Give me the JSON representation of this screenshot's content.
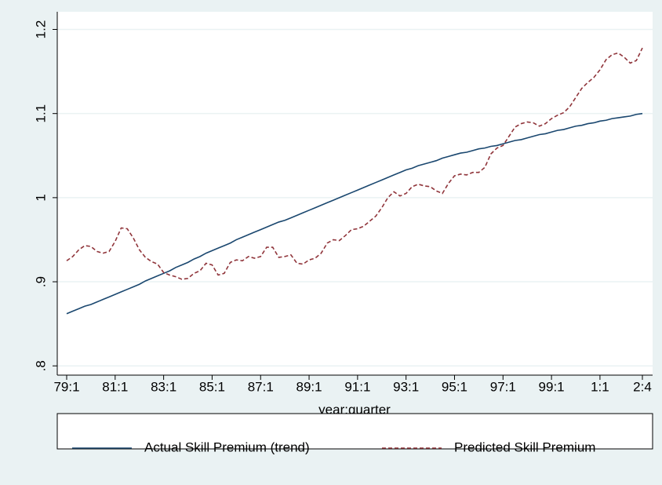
{
  "chart_data": {
    "type": "line",
    "x_label": "year:quarter",
    "categories": [
      "79:1",
      null,
      null,
      null,
      null,
      null,
      null,
      null,
      "81:1",
      null,
      null,
      null,
      null,
      null,
      null,
      null,
      "83:1",
      null,
      null,
      null,
      null,
      null,
      null,
      null,
      "85:1",
      null,
      null,
      null,
      null,
      null,
      null,
      null,
      "87:1",
      null,
      null,
      null,
      null,
      null,
      null,
      null,
      "89:1",
      null,
      null,
      null,
      null,
      null,
      null,
      null,
      "91:1",
      null,
      null,
      null,
      null,
      null,
      null,
      null,
      "93:1",
      null,
      null,
      null,
      null,
      null,
      null,
      null,
      "95:1",
      null,
      null,
      null,
      null,
      null,
      null,
      null,
      "97:1",
      null,
      null,
      null,
      null,
      null,
      null,
      null,
      "99:1",
      null,
      null,
      null,
      null,
      null,
      null,
      null,
      "1:1",
      null,
      null,
      null,
      null,
      null,
      null,
      "2:4"
    ],
    "series": [
      {
        "name": "Actual Skill Premium (trend)",
        "color": "#1a476f",
        "dash": false,
        "values": [
          0.862,
          0.865,
          0.868,
          0.871,
          0.873,
          0.876,
          0.879,
          0.882,
          0.885,
          0.888,
          0.891,
          0.894,
          0.897,
          0.901,
          0.904,
          0.907,
          0.91,
          0.913,
          0.917,
          0.92,
          0.923,
          0.927,
          0.93,
          0.934,
          0.937,
          0.94,
          0.943,
          0.946,
          0.95,
          0.953,
          0.956,
          0.959,
          0.962,
          0.965,
          0.968,
          0.971,
          0.973,
          0.976,
          0.979,
          0.982,
          0.985,
          0.988,
          0.991,
          0.994,
          0.997,
          1.0,
          1.003,
          1.006,
          1.009,
          1.012,
          1.015,
          1.018,
          1.021,
          1.024,
          1.027,
          1.03,
          1.033,
          1.035,
          1.038,
          1.04,
          1.042,
          1.044,
          1.047,
          1.049,
          1.051,
          1.053,
          1.054,
          1.056,
          1.058,
          1.059,
          1.061,
          1.062,
          1.064,
          1.066,
          1.068,
          1.069,
          1.071,
          1.073,
          1.075,
          1.076,
          1.078,
          1.08,
          1.081,
          1.083,
          1.085,
          1.086,
          1.088,
          1.089,
          1.091,
          1.092,
          1.094,
          1.095,
          1.096,
          1.097,
          1.099,
          1.1
        ]
      },
      {
        "name": "Predicted Skill Premium",
        "color": "#90353b",
        "dash": true,
        "values": [
          0.925,
          0.93,
          0.938,
          0.943,
          0.942,
          0.936,
          0.934,
          0.936,
          0.948,
          0.964,
          0.963,
          0.952,
          0.938,
          0.929,
          0.924,
          0.921,
          0.911,
          0.908,
          0.906,
          0.903,
          0.904,
          0.91,
          0.913,
          0.922,
          0.92,
          0.908,
          0.91,
          0.923,
          0.926,
          0.925,
          0.93,
          0.928,
          0.93,
          0.941,
          0.941,
          0.929,
          0.93,
          0.932,
          0.922,
          0.921,
          0.926,
          0.928,
          0.934,
          0.946,
          0.95,
          0.949,
          0.955,
          0.962,
          0.963,
          0.966,
          0.972,
          0.978,
          0.988,
          1.0,
          1.007,
          1.002,
          1.005,
          1.013,
          1.016,
          1.014,
          1.013,
          1.008,
          1.005,
          1.017,
          1.026,
          1.028,
          1.027,
          1.03,
          1.03,
          1.036,
          1.052,
          1.059,
          1.062,
          1.073,
          1.084,
          1.088,
          1.09,
          1.089,
          1.085,
          1.088,
          1.094,
          1.098,
          1.101,
          1.108,
          1.119,
          1.13,
          1.137,
          1.143,
          1.152,
          1.164,
          1.17,
          1.172,
          1.167,
          1.16,
          1.163,
          1.178
        ]
      }
    ],
    "ylim": [
      0.789,
      1.221
    ],
    "yticks": [
      {
        "value": 0.8,
        "label": ".8"
      },
      {
        "value": 0.9,
        "label": ".9"
      },
      1,
      1.1,
      1.2
    ],
    "grid": true,
    "legend": "bottom"
  }
}
